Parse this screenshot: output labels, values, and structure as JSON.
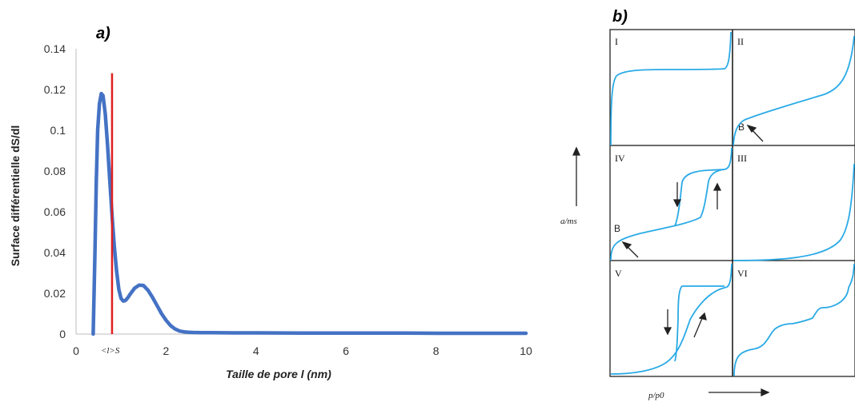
{
  "chart_data": [
    {
      "type": "line",
      "panel_label": "a)",
      "xlabel": "Taille de pore l (nm)",
      "ylabel": "Surface différentielle dS/dl",
      "xlim": [
        0,
        10
      ],
      "ylim": [
        0,
        0.14
      ],
      "x_ticks": [
        "0",
        "2",
        "4",
        "6",
        "8",
        "10"
      ],
      "y_ticks": [
        "0",
        "0.02",
        "0.04",
        "0.06",
        "0.08",
        "0.1",
        "0.12",
        "0.14"
      ],
      "grid": false,
      "series": [
        {
          "color": "#4472C4",
          "x": [
            0.38,
            0.42,
            0.45,
            0.48,
            0.52,
            0.56,
            0.6,
            0.65,
            0.7,
            0.75,
            0.8,
            0.85,
            0.9,
            0.95,
            1.0,
            1.05,
            1.1,
            1.15,
            1.2,
            1.3,
            1.4,
            1.5,
            1.6,
            1.7,
            1.8,
            1.9,
            2.0,
            2.1,
            2.2,
            2.3,
            2.4,
            2.5,
            2.6,
            2.8,
            3.0,
            3.5,
            4.0,
            5.0,
            6.0,
            7.0,
            8.0,
            9.0,
            10.0
          ],
          "y": [
            0.0,
            0.04,
            0.075,
            0.1,
            0.113,
            0.118,
            0.117,
            0.108,
            0.093,
            0.075,
            0.058,
            0.043,
            0.031,
            0.022,
            0.0175,
            0.0162,
            0.0165,
            0.0178,
            0.0195,
            0.0225,
            0.024,
            0.0238,
            0.0215,
            0.018,
            0.014,
            0.01,
            0.0068,
            0.0042,
            0.0025,
            0.0015,
            0.0011,
            0.0009,
            0.0008,
            0.0007,
            0.0007,
            0.0006,
            0.0006,
            0.0005,
            0.0005,
            0.0005,
            0.0004,
            0.0004,
            0.0004
          ]
        }
      ],
      "annotations": [
        {
          "text": "<l>S",
          "type": "vertical-line",
          "x": 0.8,
          "y_top": 0.128,
          "color": "#E02020"
        }
      ]
    },
    {
      "type": "line",
      "panel_label": "b)",
      "xlabel": "p/p0",
      "ylabel": "a/ms",
      "panels": [
        {
          "label": "I"
        },
        {
          "label": "II",
          "point_label": "B"
        },
        {
          "label": "IV",
          "point_label": "B"
        },
        {
          "label": "III"
        },
        {
          "label": "V"
        },
        {
          "label": "VI"
        }
      ],
      "curve_color": "#2AAAE6"
    }
  ]
}
